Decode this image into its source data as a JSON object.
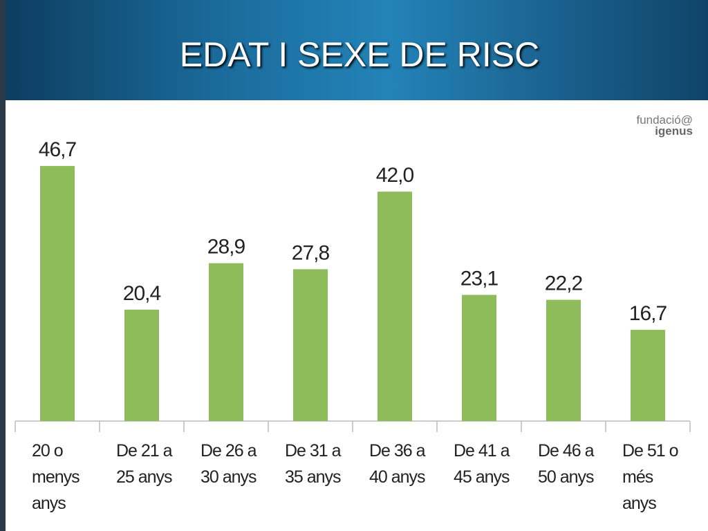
{
  "logo": {
    "line1": "fundació@",
    "line2": "igenus"
  },
  "chart_data": {
    "type": "bar",
    "title": "EDAT I SEXE DE RISC",
    "categories": [
      "20 o menys anys",
      "De 21 a 25 anys",
      "De 26 a 30 anys",
      "De 31 a 35 anys",
      "De 36 a 40 anys",
      "De 41 a 45 anys",
      "De 46 a 50 anys",
      "De 51 o més anys"
    ],
    "values": [
      46.7,
      20.4,
      28.9,
      27.8,
      42.0,
      23.1,
      22.2,
      16.7
    ],
    "value_labels": [
      "46,7",
      "20,4",
      "28,9",
      "27,8",
      "42,0",
      "23,1",
      "22,2",
      "16,7"
    ],
    "color": "#8fbc5a"
  }
}
